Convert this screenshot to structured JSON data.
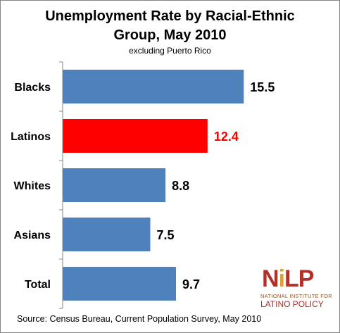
{
  "chart_data": {
    "type": "bar",
    "orientation": "horizontal",
    "title": "Unemployment Rate by Racial-Ethnic Group, May 2010",
    "title_lines": [
      "Unemployment Rate by Racial-Ethnic",
      "Group, May 2010"
    ],
    "subtitle": "excluding Puerto Rico",
    "categories": [
      "Blacks",
      "Latinos",
      "Whites",
      "Asians",
      "Total"
    ],
    "values": [
      15.5,
      12.4,
      8.8,
      7.5,
      9.7
    ],
    "value_labels": [
      "15.5",
      "12.4",
      "8.8",
      "7.5",
      "9.7"
    ],
    "bar_colors": [
      "#4f81bd",
      "#ff0000",
      "#4f81bd",
      "#4f81bd",
      "#4f81bd"
    ],
    "label_colors": [
      "#000000",
      "#ff0000",
      "#000000",
      "#000000",
      "#000000"
    ],
    "xlim": [
      0,
      18
    ],
    "grid": false,
    "legend": "none"
  },
  "source": "Source: Census Bureau, Current Population Survey, May 2010",
  "logo": {
    "mark": "NiLP",
    "line1": "NATIONAL INSTITUTE FOR",
    "line2": "LATINO POLICY"
  }
}
